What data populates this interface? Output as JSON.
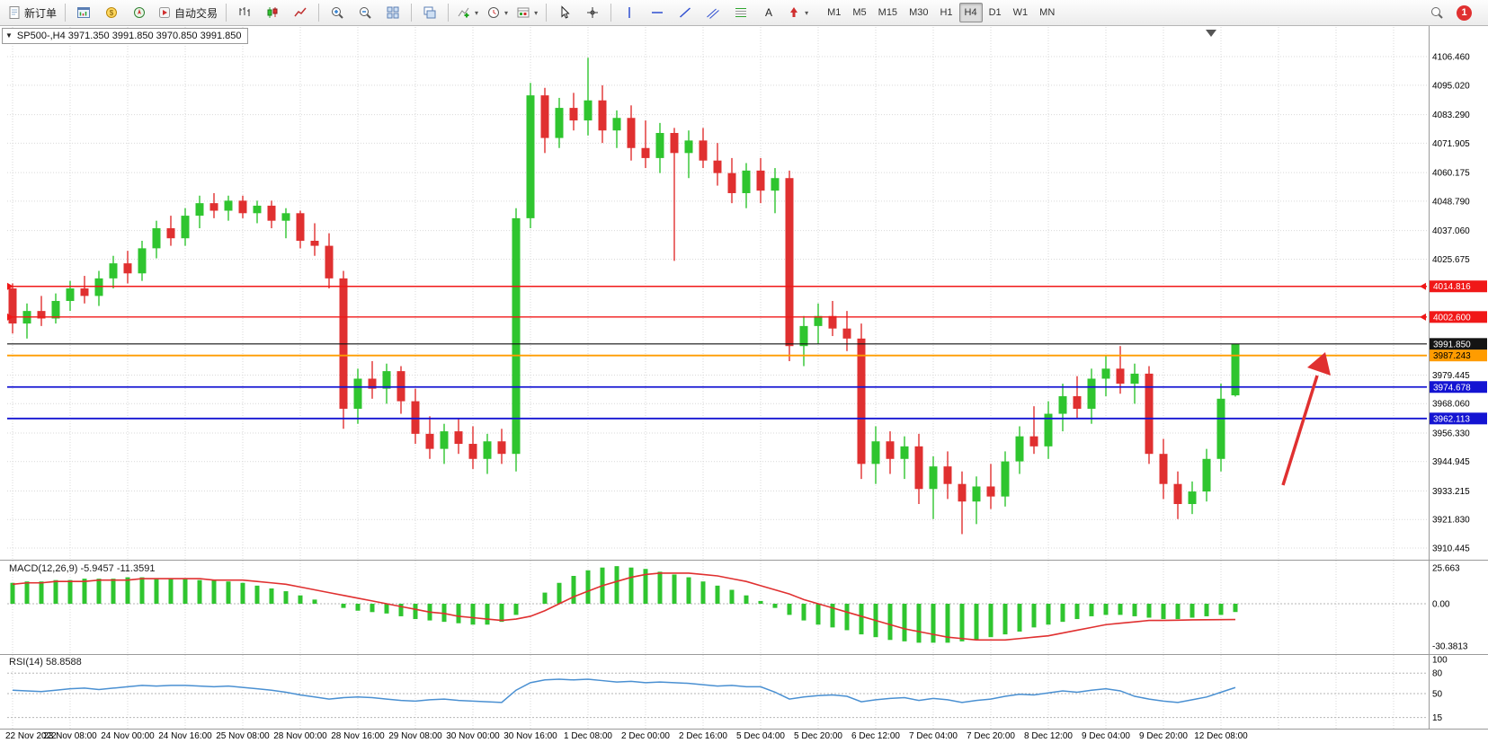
{
  "toolbar": {
    "new_order": "新订单",
    "auto_trading": "自动交易",
    "timeframes": [
      "M1",
      "M5",
      "M15",
      "M30",
      "H1",
      "H4",
      "D1",
      "W1",
      "MN"
    ],
    "active_timeframe": "H4",
    "notification_badge": "1",
    "icons": [
      "new-order",
      "charts-grid",
      "market-watch",
      "navigator",
      "auto-trading",
      "bar-chart",
      "candlestick-chart",
      "line-chart",
      "zoom-in",
      "zoom-out",
      "tile-windows",
      "cascade-windows",
      "indicators",
      "periods",
      "templates",
      "cursor",
      "crosshair",
      "vertical-line",
      "horizontal-line",
      "trendline",
      "equidistant-channel",
      "fibonacci",
      "text",
      "arrows",
      "search"
    ]
  },
  "chart": {
    "info_bar": "SP500-,H4 3971.350 3991.850 3970.850 3991.850",
    "symbol": "SP500-",
    "timeframe": "H4",
    "open": "3971.350",
    "high": "3991.850",
    "low": "3970.850",
    "close": "3991.850"
  },
  "colors": {
    "candle_up": "#2fc52f",
    "candle_down": "#e03030",
    "macd_histogram": "#2fc52f",
    "macd_signal": "#e03030",
    "rsi_line": "#4a90d2",
    "level_red": "#f01818",
    "level_orange": "#ff9c00",
    "level_blue": "#1414d2",
    "level_black": "#101010",
    "arrow_red": "#e03030"
  },
  "price_axis": {
    "ticks": [
      {
        "label": "4106.460",
        "value": 4106.46
      },
      {
        "label": "4095.020",
        "value": 4095.02
      },
      {
        "label": "4083.290",
        "value": 4083.29
      },
      {
        "label": "4071.905",
        "value": 4071.905
      },
      {
        "label": "4060.175",
        "value": 4060.175
      },
      {
        "label": "4048.790",
        "value": 4048.79
      },
      {
        "label": "4037.060",
        "value": 4037.06
      },
      {
        "label": "4025.675",
        "value": 4025.675
      },
      {
        "label": "3979.445",
        "value": 3979.445
      },
      {
        "label": "3968.060",
        "value": 3968.06
      },
      {
        "label": "3956.330",
        "value": 3956.33
      },
      {
        "label": "3944.945",
        "value": 3944.945
      },
      {
        "label": "3933.215",
        "value": 3933.215
      },
      {
        "label": "3921.830",
        "value": 3921.83
      },
      {
        "label": "3910.445",
        "value": 3910.445
      }
    ],
    "tags": [
      {
        "label": "4014.816",
        "value": 4014.816,
        "bg": "#f01818",
        "fg": "#ffffff"
      },
      {
        "label": "4002.600",
        "value": 4002.6,
        "bg": "#f01818",
        "fg": "#ffffff"
      },
      {
        "label": "3991.850",
        "value": 3991.85,
        "bg": "#141414",
        "fg": "#ffffff"
      },
      {
        "label": "3987.243",
        "value": 3987.243,
        "bg": "#ff9c00",
        "fg": "#000000"
      },
      {
        "label": "3974.678",
        "value": 3974.678,
        "bg": "#1414d2",
        "fg": "#ffffff"
      },
      {
        "label": "3962.113",
        "value": 3962.113,
        "bg": "#1414d2",
        "fg": "#ffffff"
      }
    ]
  },
  "levels": [
    {
      "price": 4014.816,
      "color": "#f01818",
      "width": 1.4,
      "edge_marks": true
    },
    {
      "price": 4002.6,
      "color": "#f01818",
      "width": 1.4,
      "edge_marks": true
    },
    {
      "price": 3991.85,
      "color": "#101010",
      "width": 1.2,
      "edge_marks": false
    },
    {
      "price": 3987.243,
      "color": "#ff9c00",
      "width": 1.8,
      "edge_marks": false
    },
    {
      "price": 3974.678,
      "color": "#1414d2",
      "width": 1.8,
      "edge_marks": false
    },
    {
      "price": 3962.113,
      "color": "#1414d2",
      "width": 1.8,
      "edge_marks": false
    }
  ],
  "macd_panel": {
    "header": "MACD(12,26,9) -5.9457 -11.3591",
    "scale": [
      {
        "label": "25.663",
        "value": 25.663
      },
      {
        "label": "0.00",
        "value": 0
      },
      {
        "label": "-30.3813",
        "value": -30.3813
      }
    ]
  },
  "rsi_panel": {
    "header": "RSI(14) 58.8588",
    "scale": [
      {
        "label": "100",
        "value": 100
      },
      {
        "label": "80",
        "value": 80
      },
      {
        "label": "50",
        "value": 50
      },
      {
        "label": "15",
        "value": 15
      }
    ],
    "levels": [
      80,
      50,
      15
    ]
  },
  "time_axis": {
    "step_bars": 4,
    "labels": [
      "22 Nov 2022",
      "23 Nov 08:00",
      "24 Nov 00:00",
      "24 Nov 16:00",
      "25 Nov 08:00",
      "28 Nov 00:00",
      "28 Nov 16:00",
      "29 Nov 08:00",
      "30 Nov 00:00",
      "30 Nov 16:00",
      "1 Dec 08:00",
      "2 Dec 00:00",
      "2 Dec 16:00",
      "5 Dec 04:00",
      "5 Dec 20:00",
      "6 Dec 12:00",
      "7 Dec 04:00",
      "7 Dec 20:00",
      "8 Dec 12:00",
      "9 Dec 04:00",
      "9 Dec 20:00",
      "12 Dec 08:00"
    ]
  },
  "annotations": {
    "arrow": {
      "type": "up-arrow",
      "color": "#e03030",
      "target_zone": "3987-3992 resistance"
    }
  },
  "chart_data": [
    {
      "type": "candlestick",
      "title": "SP500-,H4",
      "ylim": [
        3910.445,
        4106.46
      ],
      "x_labels_every_4_bars": [
        "22 Nov 2022",
        "23 Nov 08:00",
        "24 Nov 00:00",
        "24 Nov 16:00",
        "25 Nov 08:00",
        "28 Nov 00:00",
        "28 Nov 16:00",
        "29 Nov 08:00",
        "30 Nov 00:00",
        "30 Nov 16:00",
        "1 Dec 08:00",
        "2 Dec 00:00",
        "2 Dec 16:00",
        "5 Dec 04:00",
        "5 Dec 20:00",
        "6 Dec 12:00",
        "7 Dec 04:00",
        "7 Dec 20:00",
        "8 Dec 12:00",
        "9 Dec 04:00",
        "9 Dec 20:00",
        "12 Dec 08:00"
      ],
      "candles": [
        [
          4014,
          4016,
          3996,
          4000
        ],
        [
          4000,
          4008,
          3994,
          4005
        ],
        [
          4005,
          4011,
          3999,
          4002
        ],
        [
          4002,
          4012,
          4000,
          4009
        ],
        [
          4009,
          4017,
          4005,
          4014
        ],
        [
          4014,
          4019,
          4008,
          4011
        ],
        [
          4011,
          4021,
          4007,
          4018
        ],
        [
          4018,
          4027,
          4014,
          4024
        ],
        [
          4024,
          4029,
          4016,
          4020
        ],
        [
          4020,
          4033,
          4017,
          4030
        ],
        [
          4030,
          4041,
          4026,
          4038
        ],
        [
          4038,
          4043,
          4031,
          4034
        ],
        [
          4034,
          4046,
          4031,
          4043
        ],
        [
          4043,
          4051,
          4038,
          4048
        ],
        [
          4048,
          4052,
          4042,
          4045
        ],
        [
          4045,
          4051,
          4041,
          4049
        ],
        [
          4049,
          4051,
          4042,
          4044
        ],
        [
          4044,
          4049,
          4040,
          4047
        ],
        [
          4047,
          4049,
          4038,
          4041
        ],
        [
          4041,
          4046,
          4034,
          4044
        ],
        [
          4044,
          4045,
          4030,
          4033
        ],
        [
          4033,
          4040,
          4027,
          4031
        ],
        [
          4031,
          4036,
          4014,
          4018
        ],
        [
          4018,
          4021,
          3958,
          3966
        ],
        [
          3966,
          3982,
          3960,
          3978
        ],
        [
          3978,
          3985,
          3970,
          3974
        ],
        [
          3974,
          3984,
          3968,
          3981
        ],
        [
          3981,
          3983,
          3964,
          3969
        ],
        [
          3969,
          3974,
          3952,
          3956
        ],
        [
          3956,
          3963,
          3946,
          3950
        ],
        [
          3950,
          3960,
          3944,
          3957
        ],
        [
          3957,
          3962,
          3948,
          3952
        ],
        [
          3952,
          3959,
          3942,
          3946
        ],
        [
          3946,
          3956,
          3940,
          3953
        ],
        [
          3953,
          3958,
          3944,
          3948
        ],
        [
          3948,
          4046,
          3941,
          4042
        ],
        [
          4042,
          4096,
          4038,
          4091
        ],
        [
          4091,
          4094,
          4068,
          4074
        ],
        [
          4074,
          4090,
          4070,
          4086
        ],
        [
          4086,
          4092,
          4077,
          4081
        ],
        [
          4081,
          4106,
          4075,
          4089
        ],
        [
          4089,
          4095,
          4072,
          4077
        ],
        [
          4077,
          4085,
          4070,
          4082
        ],
        [
          4082,
          4087,
          4065,
          4070
        ],
        [
          4070,
          4081,
          4062,
          4066
        ],
        [
          4066,
          4080,
          4060,
          4076
        ],
        [
          4076,
          4078,
          4025,
          4068
        ],
        [
          4068,
          4077,
          4058,
          4073
        ],
        [
          4073,
          4078,
          4062,
          4065
        ],
        [
          4065,
          4072,
          4055,
          4060
        ],
        [
          4060,
          4066,
          4048,
          4052
        ],
        [
          4052,
          4064,
          4046,
          4061
        ],
        [
          4061,
          4066,
          4048,
          4053
        ],
        [
          4053,
          4062,
          4044,
          4058
        ],
        [
          4058,
          4061,
          3985,
          3991
        ],
        [
          3991,
          4003,
          3983,
          3999
        ],
        [
          3999,
          4008,
          3992,
          4003
        ],
        [
          4003,
          4009,
          3995,
          3998
        ],
        [
          3998,
          4005,
          3989,
          3994
        ],
        [
          3994,
          4000,
          3938,
          3944
        ],
        [
          3944,
          3959,
          3936,
          3953
        ],
        [
          3953,
          3957,
          3940,
          3946
        ],
        [
          3946,
          3955,
          3938,
          3951
        ],
        [
          3951,
          3956,
          3928,
          3934
        ],
        [
          3934,
          3947,
          3922,
          3943
        ],
        [
          3943,
          3949,
          3930,
          3936
        ],
        [
          3936,
          3941,
          3916,
          3929
        ],
        [
          3929,
          3939,
          3920,
          3935
        ],
        [
          3935,
          3944,
          3926,
          3931
        ],
        [
          3931,
          3949,
          3927,
          3945
        ],
        [
          3945,
          3959,
          3940,
          3955
        ],
        [
          3955,
          3967,
          3948,
          3951
        ],
        [
          3951,
          3969,
          3946,
          3964
        ],
        [
          3964,
          3976,
          3957,
          3971
        ],
        [
          3971,
          3979,
          3962,
          3966
        ],
        [
          3966,
          3982,
          3960,
          3978
        ],
        [
          3978,
          3987,
          3971,
          3982
        ],
        [
          3982,
          3991,
          3972,
          3976
        ],
        [
          3976,
          3984,
          3968,
          3980
        ],
        [
          3980,
          3983,
          3944,
          3948
        ],
        [
          3948,
          3954,
          3930,
          3936
        ],
        [
          3936,
          3941,
          3922,
          3928
        ],
        [
          3928,
          3937,
          3924,
          3933
        ],
        [
          3933,
          3950,
          3929,
          3946
        ],
        [
          3946,
          3976,
          3941,
          3970
        ],
        [
          3971.35,
          3991.85,
          3970.85,
          3991.85
        ]
      ]
    },
    {
      "type": "bar",
      "name": "MACD(12,26,9)",
      "last_histogram": -5.9457,
      "last_signal": -11.3591,
      "ylim": [
        -30.3813,
        25.663
      ],
      "histogram": [
        15,
        16,
        16,
        17,
        17,
        18,
        18,
        18,
        19,
        19,
        18,
        18,
        18,
        17,
        17,
        16,
        15,
        13,
        11,
        9,
        6,
        3,
        0,
        -3,
        -5,
        -6,
        -7,
        -9,
        -11,
        -12,
        -13,
        -14,
        -15,
        -15,
        -13,
        -8,
        0,
        8,
        15,
        20,
        24,
        26,
        27,
        26,
        25,
        23,
        21,
        19,
        16,
        13,
        10,
        6,
        2,
        -3,
        -8,
        -12,
        -15,
        -17,
        -19,
        -22,
        -24,
        -26,
        -27,
        -28,
        -28,
        -28,
        -27,
        -26,
        -24,
        -22,
        -20,
        -17,
        -15,
        -13,
        -11,
        -9,
        -8,
        -8,
        -9,
        -10,
        -11,
        -11,
        -10,
        -9,
        -8,
        -5.9457
      ],
      "signal": [
        14,
        15,
        15,
        16,
        16,
        16,
        17,
        17,
        17,
        18,
        18,
        18,
        18,
        18,
        17,
        17,
        17,
        16,
        15,
        14,
        12,
        10,
        8,
        6,
        4,
        2,
        0,
        -2,
        -4,
        -6,
        -7,
        -9,
        -10,
        -11,
        -12,
        -11,
        -9,
        -5,
        0,
        5,
        9,
        13,
        16,
        19,
        21,
        22,
        22,
        22,
        21,
        20,
        18,
        16,
        13,
        10,
        7,
        3,
        0,
        -3,
        -6,
        -9,
        -12,
        -15,
        -18,
        -20,
        -22,
        -24,
        -25,
        -26,
        -26,
        -26,
        -25,
        -24,
        -23,
        -21,
        -19,
        -17,
        -15,
        -14,
        -13,
        -12,
        -12,
        -11.8,
        -11.6,
        -11.5,
        -11.4,
        -11.3591
      ]
    },
    {
      "type": "line",
      "name": "RSI(14)",
      "last": 58.8588,
      "ylim": [
        0,
        100
      ],
      "levels": [
        80,
        50,
        15
      ],
      "values": [
        55,
        54,
        53,
        55,
        57,
        58,
        56,
        58,
        60,
        62,
        61,
        62,
        62,
        61,
        60,
        61,
        59,
        57,
        55,
        52,
        48,
        45,
        42,
        44,
        45,
        44,
        42,
        40,
        39,
        41,
        42,
        40,
        39,
        38,
        37,
        55,
        66,
        70,
        71,
        70,
        71,
        69,
        67,
        68,
        66,
        67,
        66,
        65,
        63,
        61,
        62,
        60,
        60,
        52,
        42,
        45,
        47,
        48,
        46,
        38,
        41,
        43,
        44,
        40,
        43,
        41,
        37,
        40,
        42,
        46,
        49,
        48,
        51,
        54,
        52,
        55,
        57,
        54,
        46,
        42,
        39,
        37,
        41,
        45,
        52,
        58.8588
      ]
    }
  ]
}
